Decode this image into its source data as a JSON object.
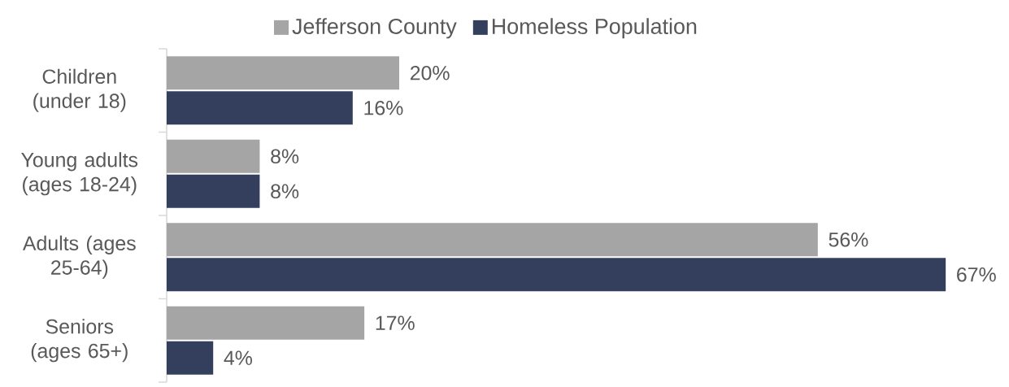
{
  "chart_data": {
    "type": "bar",
    "orientation": "horizontal",
    "categories": [
      "Children (under 18)",
      "Young adults (ages 18-24)",
      "Adults (ages 25-64)",
      "Seniors (ages 65+)"
    ],
    "series": [
      {
        "name": "Jefferson County",
        "color": "#a5a5a5",
        "values": [
          20,
          8,
          56,
          17
        ],
        "value_labels": [
          "20%",
          "8%",
          "56%",
          "17%"
        ]
      },
      {
        "name": "Homeless Population",
        "color": "#333f5c",
        "values": [
          16,
          8,
          67,
          4
        ],
        "value_labels": [
          "16%",
          "8%",
          "67%",
          "4%"
        ]
      }
    ],
    "legend": "top",
    "grid": false,
    "tick_labels": "y"
  }
}
